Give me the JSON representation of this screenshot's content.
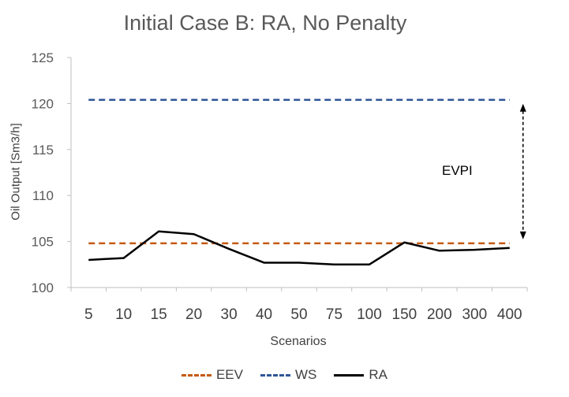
{
  "chart_data": {
    "type": "line",
    "title": "Initial Case B: RA, No Penalty",
    "xlabel": "Scenarios",
    "ylabel": "Oil Output [Sm3/h]",
    "ylim": [
      100,
      125
    ],
    "yticks": [
      100,
      105,
      110,
      115,
      120,
      125
    ],
    "grid": false,
    "legend": "bottom",
    "categories": [
      "5",
      "10",
      "15",
      "20",
      "30",
      "40",
      "50",
      "75",
      "100",
      "150",
      "200",
      "300",
      "400"
    ],
    "series": [
      {
        "name": "EEV",
        "color": "#C55A11",
        "dash": "dashed",
        "values": [
          104.8,
          104.8,
          104.8,
          104.8,
          104.8,
          104.8,
          104.8,
          104.8,
          104.8,
          104.8,
          104.8,
          104.8,
          104.8
        ]
      },
      {
        "name": "WS",
        "color": "#2F5597",
        "dash": "dashed",
        "values": [
          120.4,
          120.4,
          120.4,
          120.4,
          120.4,
          120.4,
          120.4,
          120.4,
          120.4,
          120.4,
          120.4,
          120.4,
          120.4
        ]
      },
      {
        "name": "RA",
        "color": "#000000",
        "dash": "solid",
        "values": [
          103.0,
          103.2,
          106.1,
          105.8,
          104.2,
          102.7,
          102.7,
          102.5,
          102.5,
          104.9,
          104.0,
          104.1,
          104.3
        ]
      }
    ],
    "annotations": [
      {
        "text": "EVPI",
        "from": 104.8,
        "to": 120.4,
        "at_category": "400"
      }
    ]
  }
}
